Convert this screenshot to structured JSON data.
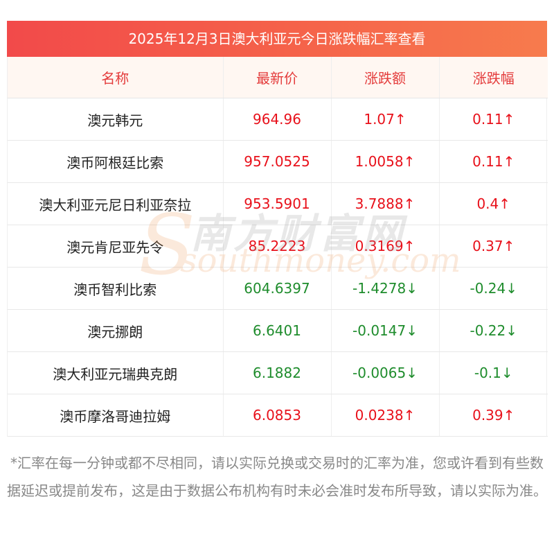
{
  "title": "2025年12月3日澳大利亚元今日涨跌幅汇率查看",
  "headers": {
    "name": "名称",
    "price": "最新价",
    "change": "涨跌额",
    "change_pct": "涨跌幅"
  },
  "rows": [
    {
      "name": "澳元韩元",
      "price": "964.96",
      "change": "1.07↑",
      "change_pct": "0.11↑",
      "trend": "up"
    },
    {
      "name": "澳币阿根廷比索",
      "price": "957.0525",
      "change": "1.0058↑",
      "change_pct": "0.11↑",
      "trend": "up"
    },
    {
      "name": "澳大利亚元尼日利亚奈拉",
      "price": "953.5901",
      "change": "3.7888↑",
      "change_pct": "0.4↑",
      "trend": "up"
    },
    {
      "name": "澳元肯尼亚先令",
      "price": "85.2223",
      "change": "0.3169↑",
      "change_pct": "0.37↑",
      "trend": "up"
    },
    {
      "name": "澳币智利比索",
      "price": "604.6397",
      "change": "-1.4278↓",
      "change_pct": "-0.24↓",
      "trend": "down"
    },
    {
      "name": "澳元挪朗",
      "price": "6.6401",
      "change": "-0.0147↓",
      "change_pct": "-0.22↓",
      "trend": "down"
    },
    {
      "name": "澳大利亚元瑞典克朗",
      "price": "6.1882",
      "change": "-0.0065↓",
      "change_pct": "-0.1↓",
      "trend": "down"
    },
    {
      "name": "澳币摩洛哥迪拉姆",
      "price": "6.0853",
      "change": "0.0238↑",
      "change_pct": "0.39↑",
      "trend": "up"
    }
  ],
  "watermark": {
    "cn": "南方财富网",
    "en": "southmoney.com",
    "letter": "S"
  },
  "note": "*汇率在每一分钟或都不尽相同，请以实际兑换或交易时的汇率为准，您或许看到有些数据延迟或提前发布，这是由于数据公布机构有时未必会准时发布所导致，请以实际为准。",
  "colors": {
    "up": "#e8101a",
    "down": "#1e8c2c",
    "header_text": "#e43c3c",
    "title_bg": "#f24a4a"
  }
}
